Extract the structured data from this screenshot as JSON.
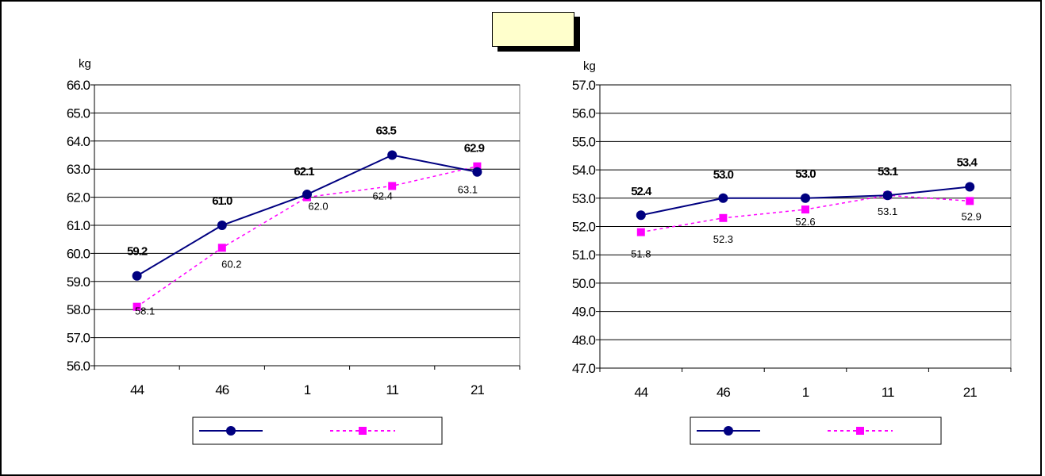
{
  "header": {
    "title": ""
  },
  "chart_data": [
    {
      "type": "line",
      "ylabel": "kg",
      "categories": [
        "44",
        "46",
        "1",
        "11",
        "21"
      ],
      "ylim": [
        56.0,
        66.0
      ],
      "yticks": [
        "56.0",
        "57.0",
        "58.0",
        "59.0",
        "60.0",
        "61.0",
        "62.0",
        "63.0",
        "64.0",
        "65.0",
        "66.0"
      ],
      "grid": true,
      "legend_position": "bottom",
      "series": [
        {
          "values": [
            59.2,
            61.0,
            62.1,
            63.5,
            62.9
          ],
          "labels": [
            "59.2",
            "61.0",
            "62.1",
            "63.5",
            "62.9"
          ],
          "color": "#000080",
          "marker": "circle",
          "line_style": "solid"
        },
        {
          "values": [
            58.1,
            60.2,
            62.0,
            62.4,
            63.1
          ],
          "labels": [
            "58.1",
            "60.2",
            "62.0",
            "62.4",
            "63.1"
          ],
          "color": "#ff00ff",
          "marker": "square",
          "line_style": "dashed"
        }
      ]
    },
    {
      "type": "line",
      "ylabel": "kg",
      "categories": [
        "44",
        "46",
        "1",
        "11",
        "21"
      ],
      "ylim": [
        47.0,
        57.0
      ],
      "yticks": [
        "47.0",
        "48.0",
        "49.0",
        "50.0",
        "51.0",
        "52.0",
        "53.0",
        "54.0",
        "55.0",
        "56.0",
        "57.0"
      ],
      "grid": true,
      "legend_position": "bottom",
      "series": [
        {
          "values": [
            52.4,
            53.0,
            53.0,
            53.1,
            53.4
          ],
          "labels": [
            "52.4",
            "53.0",
            "53.0",
            "53.1",
            "53.4"
          ],
          "color": "#000080",
          "marker": "circle",
          "line_style": "solid"
        },
        {
          "values": [
            51.8,
            52.3,
            52.6,
            53.1,
            52.9
          ],
          "labels": [
            "51.8",
            "52.3",
            "52.6",
            "53.1",
            "52.9"
          ],
          "color": "#ff00ff",
          "marker": "square",
          "line_style": "dashed"
        }
      ]
    }
  ]
}
